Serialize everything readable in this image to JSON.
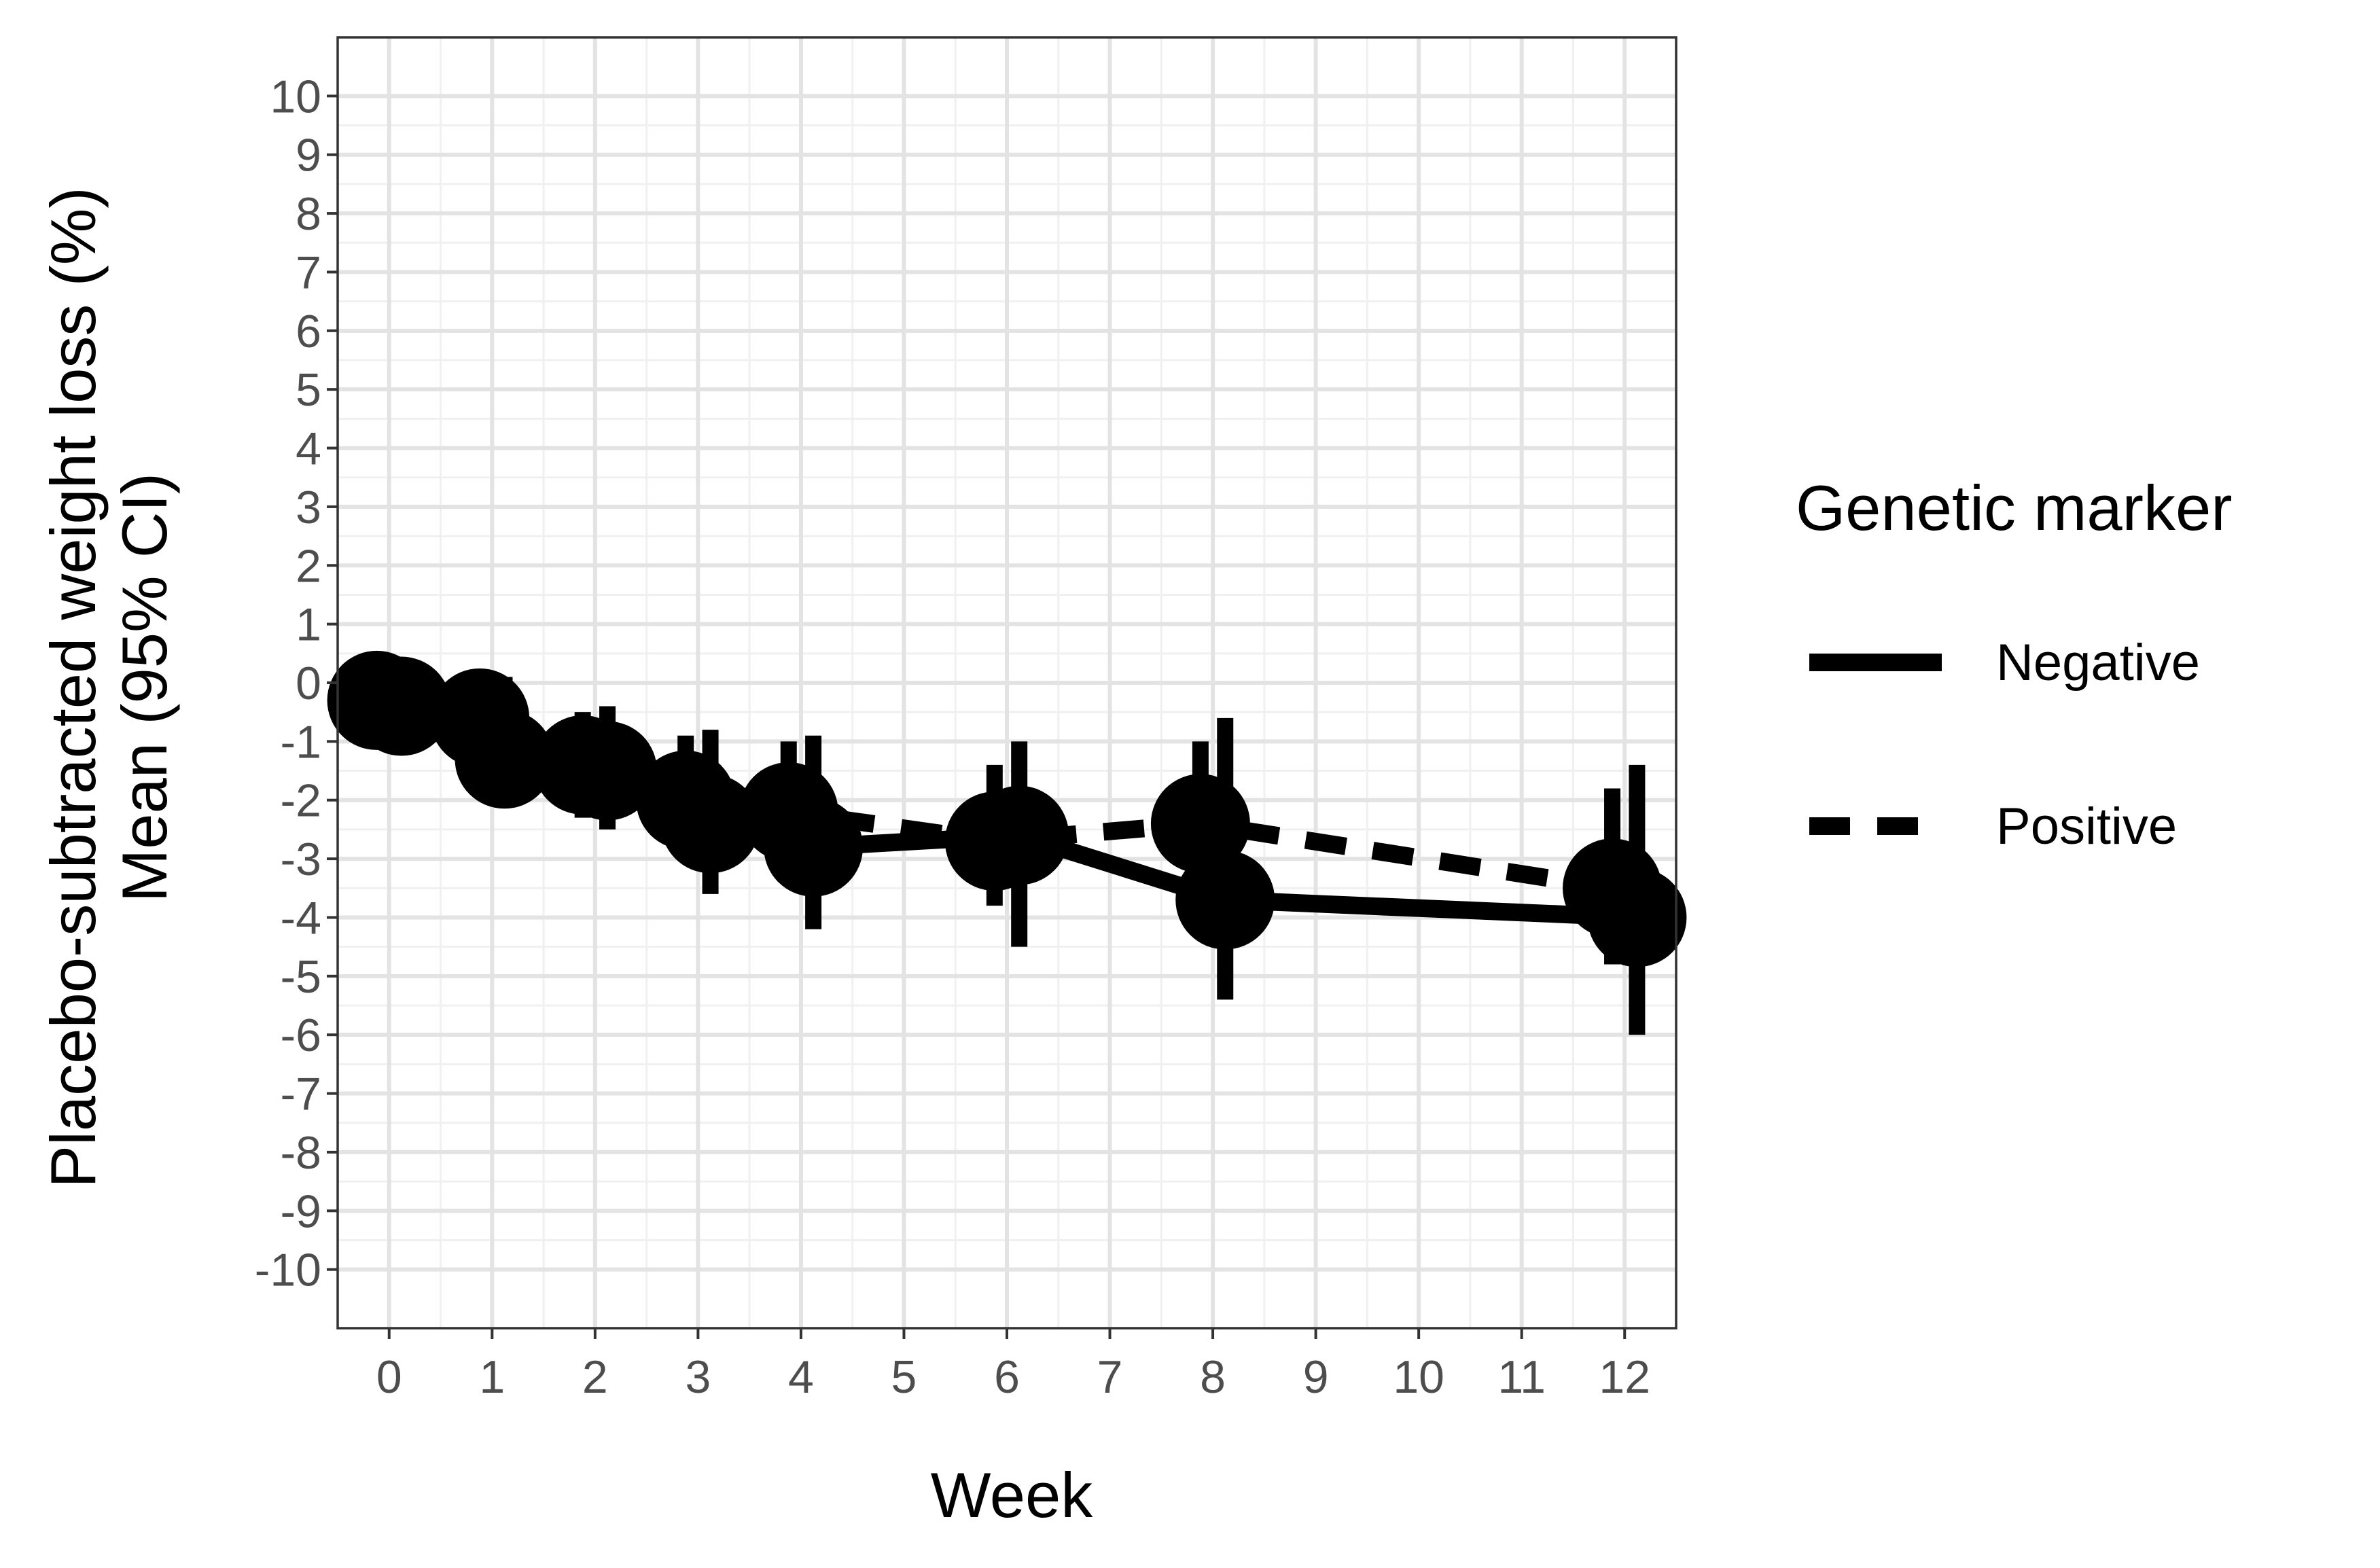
{
  "chart_data": {
    "type": "line",
    "xlabel": "Week",
    "ylabel_lines": [
      "Placebo-subtracted weight loss (%)",
      "Mean (95% CI)"
    ],
    "x_ticks": [
      0,
      1,
      2,
      3,
      4,
      5,
      6,
      7,
      8,
      9,
      10,
      11,
      12
    ],
    "y_ticks": [
      10,
      9,
      8,
      7,
      6,
      5,
      4,
      3,
      2,
      1,
      0,
      -1,
      -2,
      -3,
      -4,
      -5,
      -6,
      -7,
      -8,
      -9,
      -10
    ],
    "xlim": [
      -0.5,
      12.5
    ],
    "ylim": [
      -11,
      11
    ],
    "grid": true,
    "legend": {
      "title": "Genetic marker",
      "position": "right",
      "entries": [
        {
          "name": "Negative",
          "linestyle": "solid"
        },
        {
          "name": "Positive",
          "linestyle": "dashed"
        }
      ]
    },
    "series": [
      {
        "name": "Negative",
        "linestyle": "solid",
        "x": [
          0,
          1,
          2,
          3,
          4,
          6,
          8,
          12
        ],
        "y": [
          -0.4,
          -1.3,
          -1.5,
          -2.4,
          -2.8,
          -2.6,
          -3.7,
          -4.0
        ],
        "ci_low": [
          -0.4,
          -2.0,
          -2.5,
          -3.6,
          -4.2,
          -4.5,
          -5.4,
          -6.0
        ],
        "ci_high": [
          -0.4,
          0.1,
          -0.4,
          -0.8,
          -0.9,
          -1.0,
          -0.6,
          -1.4
        ]
      },
      {
        "name": "Positive",
        "linestyle": "dashed",
        "x": [
          0,
          1,
          2,
          3,
          4,
          6,
          8,
          12
        ],
        "y": [
          -0.3,
          -0.6,
          -1.4,
          -2.0,
          -2.2,
          -2.7,
          -2.4,
          -3.5
        ],
        "ci_low": [
          -0.3,
          -1.4,
          -2.3,
          -3.0,
          -3.2,
          -3.8,
          -3.6,
          -4.8
        ],
        "ci_high": [
          -0.3,
          0.2,
          -0.5,
          -0.9,
          -1.0,
          -1.4,
          -1.0,
          -1.8
        ]
      }
    ]
  }
}
